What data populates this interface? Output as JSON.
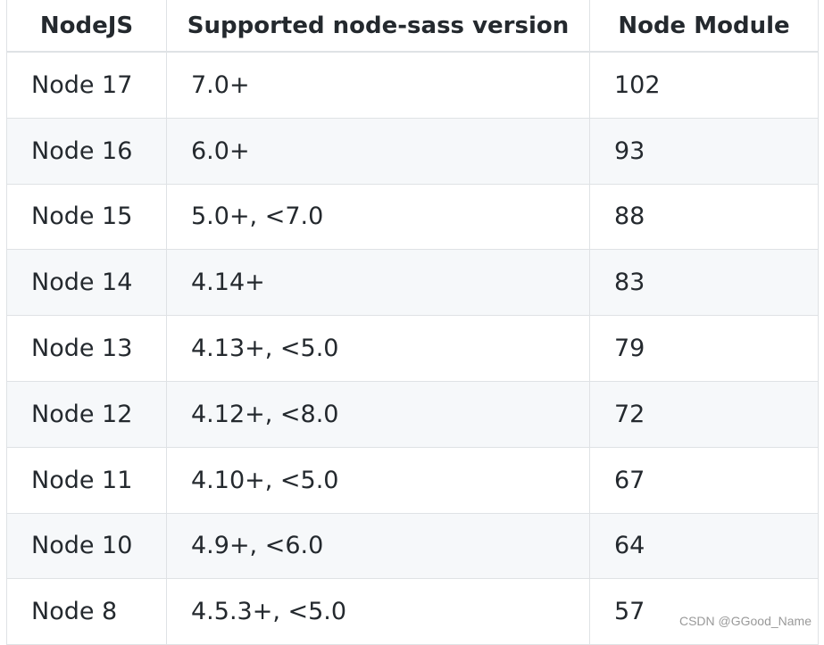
{
  "table": {
    "header": [
      "NodeJS",
      "Supported node-sass version",
      "Node Module"
    ],
    "rows": [
      [
        "Node 17",
        "7.0+",
        "102"
      ],
      [
        "Node 16",
        "6.0+",
        "93"
      ],
      [
        "Node 15",
        "5.0+, <7.0",
        "88"
      ],
      [
        "Node 14",
        "4.14+",
        "83"
      ],
      [
        "Node 13",
        "4.13+, <5.0",
        "79"
      ],
      [
        "Node 12",
        "4.12+, <8.0",
        "72"
      ],
      [
        "Node 11",
        "4.10+, <5.0",
        "67"
      ],
      [
        "Node 10",
        "4.9+, <6.0",
        "64"
      ],
      [
        "Node 8",
        "4.5.3+, <5.0",
        "57"
      ]
    ]
  },
  "watermark": "CSDN @GGood_Name"
}
